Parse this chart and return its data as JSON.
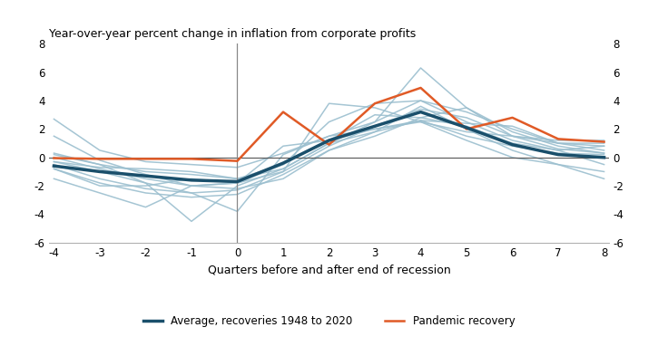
{
  "title": "Year-over-year percent change in inflation from corporate profits",
  "xlabel": "Quarters before and after end of recession",
  "xlim": [
    -4,
    8
  ],
  "ylim": [
    -6,
    8
  ],
  "yticks": [
    -6,
    -4,
    -2,
    0,
    2,
    4,
    6,
    8
  ],
  "xticks": [
    -4,
    -3,
    -2,
    -1,
    0,
    1,
    2,
    3,
    4,
    5,
    6,
    7,
    8
  ],
  "avg_color": "#1a4f6b",
  "pandemic_color": "#e05a26",
  "bg_line_color": "#9bbfcf",
  "zero_line_color": "#555555",
  "vline_color": "#888888",
  "avg_x": [
    -4,
    -3,
    -2,
    -1,
    0,
    1,
    2,
    3,
    4,
    5,
    6,
    7,
    8
  ],
  "avg_y": [
    -0.6,
    -1.0,
    -1.3,
    -1.6,
    -1.7,
    -0.4,
    1.2,
    2.2,
    3.2,
    2.1,
    0.9,
    0.2,
    0.0
  ],
  "pandemic_x": [
    -4,
    -3,
    -2,
    -1,
    0,
    1,
    2,
    3,
    4,
    5,
    6,
    7,
    8
  ],
  "pandemic_y": [
    -0.05,
    -0.1,
    -0.1,
    -0.1,
    -0.25,
    3.2,
    0.9,
    3.8,
    4.9,
    2.0,
    2.8,
    1.3,
    1.1
  ],
  "individual_lines": [
    [
      2.7,
      0.5,
      -0.3,
      -0.5,
      -0.7,
      0.3,
      1.5,
      2.5,
      4.0,
      2.5,
      1.2,
      0.5,
      0.8
    ],
    [
      0.3,
      -0.5,
      -1.0,
      -1.2,
      -1.5,
      -0.8,
      1.0,
      1.8,
      2.6,
      1.5,
      0.8,
      0.3,
      0.2
    ],
    [
      0.0,
      -0.8,
      -1.5,
      -2.0,
      -1.8,
      -0.5,
      1.2,
      2.0,
      2.6,
      2.4,
      2.2,
      1.0,
      1.0
    ],
    [
      -0.5,
      -1.5,
      -2.2,
      -2.5,
      -2.3,
      -1.0,
      0.8,
      2.2,
      3.4,
      2.8,
      1.5,
      0.6,
      0.3
    ],
    [
      -0.8,
      -1.8,
      -2.5,
      -2.8,
      -2.6,
      -1.2,
      0.5,
      1.8,
      3.6,
      2.0,
      0.5,
      -0.5,
      -1.5
    ],
    [
      -0.3,
      -0.7,
      -0.8,
      -1.0,
      -1.5,
      -0.5,
      2.5,
      3.8,
      4.0,
      3.2,
      2.0,
      1.0,
      0.5
    ],
    [
      0.2,
      -0.5,
      -1.8,
      -4.5,
      -2.0,
      -0.8,
      1.0,
      2.5,
      6.3,
      3.5,
      1.8,
      0.8,
      0.3
    ],
    [
      -1.5,
      -2.5,
      -3.5,
      -2.0,
      -2.2,
      -1.5,
      0.5,
      1.5,
      2.8,
      2.2,
      1.0,
      0.5,
      -0.5
    ],
    [
      -0.3,
      -1.0,
      -1.8,
      -2.5,
      -3.8,
      0.2,
      1.5,
      2.0,
      2.5,
      1.2,
      0.0,
      -0.5,
      -1.0
    ],
    [
      1.5,
      -0.2,
      -1.2,
      -2.0,
      -1.8,
      0.8,
      1.2,
      3.0,
      2.8,
      3.5,
      1.5,
      1.0,
      0.8
    ],
    [
      -0.8,
      -2.0,
      -2.0,
      -1.5,
      -1.8,
      -1.0,
      3.8,
      3.5,
      2.5,
      1.8,
      1.5,
      1.2,
      1.2
    ]
  ],
  "legend_avg_label": "Average, recoveries 1948 to 2020",
  "legend_pandemic_label": "Pandemic recovery"
}
